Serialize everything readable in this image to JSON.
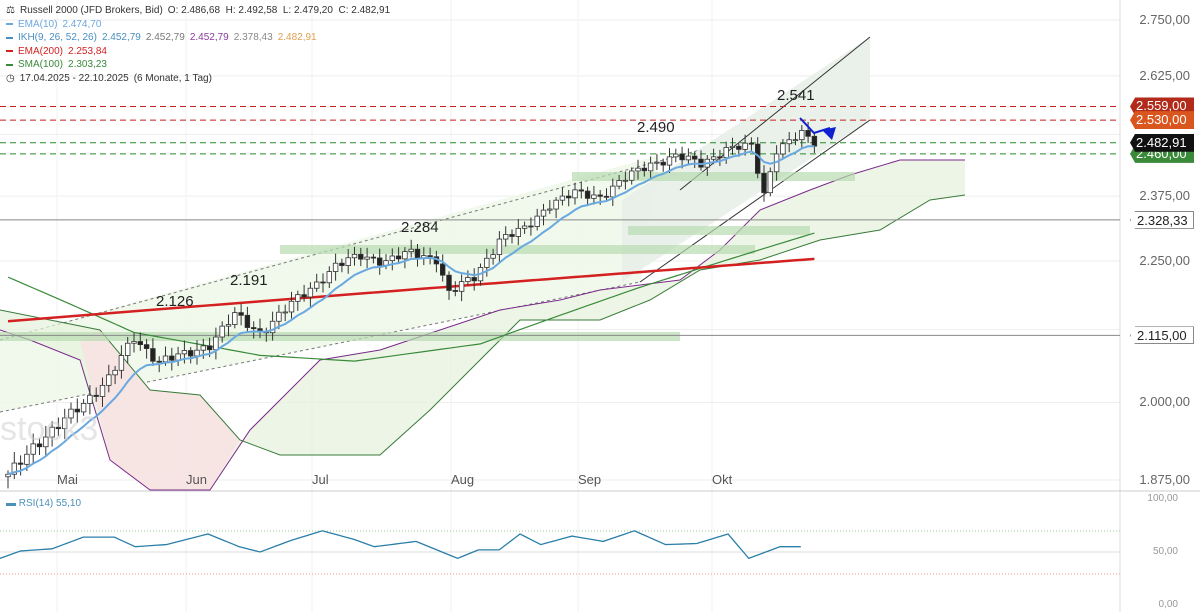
{
  "header": {
    "title": "Russell 2000 (JFD Brokers, Bid)",
    "ohlc": "O: 2.486,68  H: 2.492,58  L: 2.479,20  C: 2.482,91",
    "range": "17.04.2025 - 22.10.2025",
    "range_info": "(6 Monate, 1 Tag)"
  },
  "indicators": [
    {
      "label": "EMA(10)",
      "values": [
        "2.474,70"
      ],
      "color": "#6aa8e0"
    },
    {
      "label": "IKH(9, 26, 52, 26)",
      "values": [
        "2.452,79",
        "2.452,79",
        "2.452,79",
        "2.378,43",
        "2.482,91"
      ],
      "color": "#4a8fc0"
    },
    {
      "label": "EMA(200)",
      "values": [
        "2.253,84"
      ],
      "color": "#d42020"
    },
    {
      "label": "SMA(100)",
      "values": [
        "2.303,23"
      ],
      "color": "#3a8a3a"
    }
  ],
  "price_axis": [
    "2.750,00",
    "2.625,00",
    "2.375,00",
    "2.250,00",
    "2.000,00",
    "1.875,00"
  ],
  "price_tags": [
    {
      "value": 2559,
      "label": "2.559,00",
      "color": "#b22a1a"
    },
    {
      "value": 2530,
      "label": "2.530,00",
      "color": "#d9571f"
    },
    {
      "value": 2460,
      "label": "2.460,00",
      "color": "#3a8a3a"
    },
    {
      "value": 2482.91,
      "label": "2.482,91",
      "color": "#111111"
    },
    {
      "value": 2328.33,
      "label": "2.328,33",
      "color": "#666666"
    },
    {
      "value": 2115,
      "label": "2.115,00",
      "color": "#666666"
    }
  ],
  "months": [
    "Mai",
    "Jun",
    "Jul",
    "Aug",
    "Sep",
    "Okt"
  ],
  "annotations": [
    "2.126",
    "2.191",
    "2.284",
    "2.490",
    "2.541"
  ],
  "watermark": "stock3",
  "rsi": {
    "label": "RSI(14)",
    "value": "55,10",
    "axis": [
      "100,00",
      "50,00",
      "0,00"
    ]
  },
  "chart_data": {
    "type": "candlestick",
    "title": "Russell 2000 (JFD Brokers, Bid)",
    "scale": "log",
    "ylim": [
      1875,
      2750
    ],
    "close_keyframes": [
      [
        0,
        1880
      ],
      [
        4,
        1930
      ],
      [
        8,
        1960
      ],
      [
        12,
        2000
      ],
      [
        16,
        2040
      ],
      [
        20,
        2110
      ],
      [
        24,
        2070
      ],
      [
        28,
        2080
      ],
      [
        32,
        2100
      ],
      [
        36,
        2150
      ],
      [
        40,
        2120
      ],
      [
        44,
        2160
      ],
      [
        48,
        2200
      ],
      [
        52,
        2240
      ],
      [
        56,
        2260
      ],
      [
        60,
        2250
      ],
      [
        64,
        2265
      ],
      [
        68,
        2255
      ],
      [
        70,
        2190
      ],
      [
        74,
        2220
      ],
      [
        78,
        2290
      ],
      [
        82,
        2310
      ],
      [
        86,
        2360
      ],
      [
        90,
        2380
      ],
      [
        94,
        2375
      ],
      [
        98,
        2410
      ],
      [
        102,
        2440
      ],
      [
        106,
        2455
      ],
      [
        110,
        2440
      ],
      [
        114,
        2470
      ],
      [
        118,
        2475
      ],
      [
        120,
        2380
      ],
      [
        122,
        2470
      ],
      [
        126,
        2500
      ],
      [
        128,
        2483
      ]
    ],
    "ema200": [
      [
        0,
        2140
      ],
      [
        128,
        2254
      ]
    ],
    "sma100": [
      [
        0,
        2220
      ],
      [
        20,
        2120
      ],
      [
        40,
        2080
      ],
      [
        55,
        2070
      ],
      [
        75,
        2100
      ],
      [
        100,
        2200
      ],
      [
        128,
        2303
      ]
    ],
    "rsi_keyframes": [
      [
        0,
        44
      ],
      [
        4,
        51
      ],
      [
        10,
        53
      ],
      [
        16,
        64
      ],
      [
        22,
        64
      ],
      [
        26,
        55
      ],
      [
        32,
        57
      ],
      [
        40,
        67
      ],
      [
        46,
        55
      ],
      [
        50,
        50
      ],
      [
        56,
        61
      ],
      [
        62,
        70
      ],
      [
        68,
        62
      ],
      [
        72,
        55
      ],
      [
        80,
        60
      ],
      [
        88,
        44
      ],
      [
        92,
        52
      ],
      [
        96,
        52
      ],
      [
        100,
        67
      ],
      [
        104,
        57
      ],
      [
        110,
        65
      ],
      [
        116,
        60
      ],
      [
        122,
        70
      ],
      [
        128,
        57
      ],
      [
        134,
        58
      ],
      [
        140,
        67
      ],
      [
        144,
        44
      ],
      [
        150,
        55
      ],
      [
        154,
        55
      ]
    ]
  }
}
